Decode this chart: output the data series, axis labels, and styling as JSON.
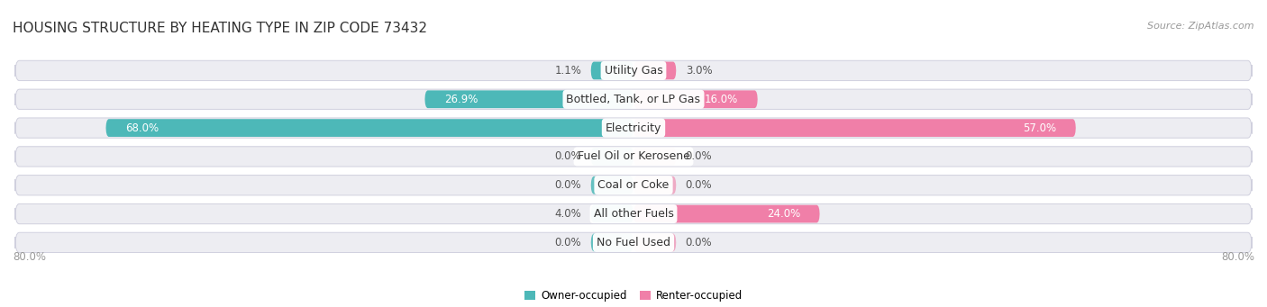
{
  "title": "HOUSING STRUCTURE BY HEATING TYPE IN ZIP CODE 73432",
  "source": "Source: ZipAtlas.com",
  "categories": [
    "Utility Gas",
    "Bottled, Tank, or LP Gas",
    "Electricity",
    "Fuel Oil or Kerosene",
    "Coal or Coke",
    "All other Fuels",
    "No Fuel Used"
  ],
  "owner_values": [
    1.1,
    26.9,
    68.0,
    0.0,
    0.0,
    4.0,
    0.0
  ],
  "renter_values": [
    3.0,
    16.0,
    57.0,
    0.0,
    0.0,
    24.0,
    0.0
  ],
  "owner_color": "#4db8b8",
  "renter_color": "#f07fa8",
  "bar_bg_color": "#ededf2",
  "bar_border_color": "#d0d0de",
  "x_max": 80.0,
  "axis_label_left": "80.0%",
  "axis_label_right": "80.0%",
  "legend_owner": "Owner-occupied",
  "legend_renter": "Renter-occupied",
  "title_fontsize": 11,
  "source_fontsize": 8,
  "label_fontsize": 8.5,
  "category_fontsize": 9,
  "tick_fontsize": 8.5,
  "bar_height": 0.62,
  "min_bar_width": 5.5,
  "background_color": "#ffffff",
  "label_inside_threshold": 8.0,
  "label_inside_color": "#ffffff",
  "label_outside_color": "#555555"
}
